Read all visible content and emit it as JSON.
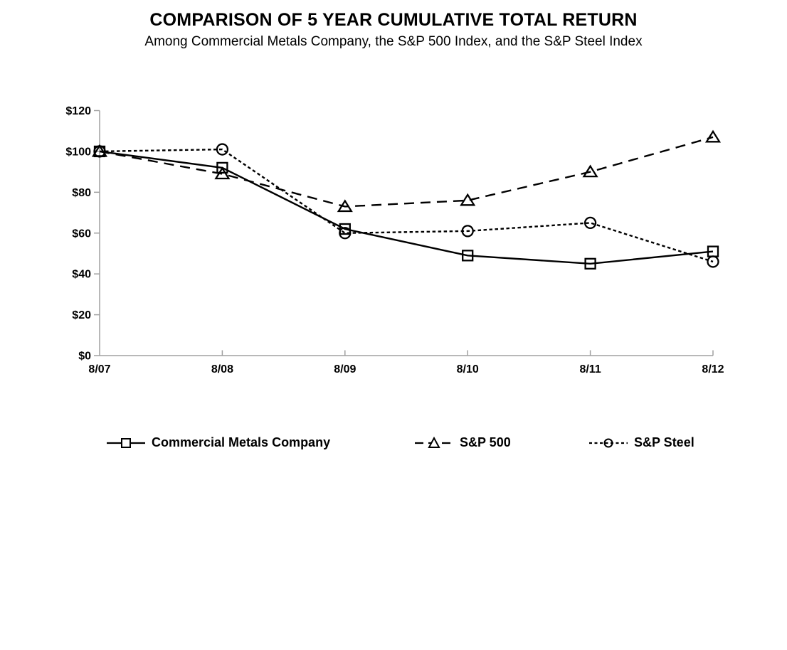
{
  "chart_data": {
    "type": "line",
    "title": "COMPARISON OF 5 YEAR CUMULATIVE TOTAL RETURN",
    "subtitle": "Among Commercial Metals Company, the S&P 500 Index, and the S&P Steel Index",
    "categories": [
      "8/07",
      "8/08",
      "8/09",
      "8/10",
      "8/11",
      "8/12"
    ],
    "series": [
      {
        "name": "Commercial Metals Company",
        "marker": "square",
        "line_style": "solid",
        "values": [
          100,
          92,
          62,
          49,
          45,
          51
        ]
      },
      {
        "name": "S&P 500",
        "marker": "triangle",
        "line_style": "dashed",
        "values": [
          100,
          89,
          73,
          76,
          90,
          107
        ]
      },
      {
        "name": "S&P Steel",
        "marker": "circle",
        "line_style": "dotted",
        "values": [
          100,
          101,
          60,
          61,
          65,
          46
        ]
      }
    ],
    "y_ticks": [
      "$0",
      "$20",
      "$40",
      "$60",
      "$80",
      "$100",
      "$120"
    ],
    "y_tick_values": [
      0,
      20,
      40,
      60,
      80,
      100,
      120
    ],
    "ylim": [
      0,
      120
    ],
    "xlabel": "",
    "ylabel": "",
    "grid": false,
    "legend_position": "bottom",
    "axis_color": "#a0a0a0",
    "line_color": "#000000",
    "text_color": "#000000"
  }
}
